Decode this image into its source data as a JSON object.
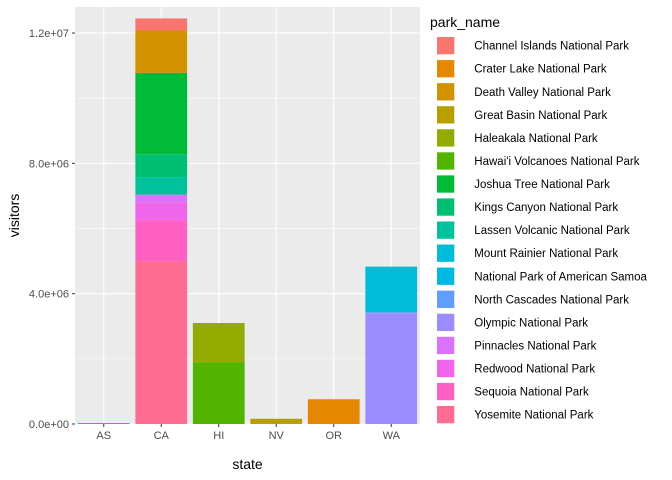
{
  "chart_data": {
    "type": "bar",
    "stacked": true,
    "xlabel": "state",
    "ylabel": "visitors",
    "ylim": [
      0,
      12800000
    ],
    "y_ticks": [
      0,
      4000000,
      8000000,
      12000000
    ],
    "y_tick_labels": [
      "0.0e+00",
      "4.0e+06",
      "8.0e+06",
      "1.2e+07"
    ],
    "categories": [
      "AS",
      "CA",
      "HI",
      "NV",
      "OR",
      "WA"
    ],
    "legend_title": "park_name",
    "legend_position": "right",
    "grid": true,
    "series": [
      {
        "name": "Channel Islands National Park",
        "color": "#F8766D",
        "values": [
          0,
          370000,
          0,
          0,
          0,
          0
        ]
      },
      {
        "name": "Crater Lake National Park",
        "color": "#E58700",
        "values": [
          0,
          0,
          0,
          0,
          760000,
          0
        ]
      },
      {
        "name": "Death Valley National Park",
        "color": "#D39200",
        "values": [
          0,
          1300000,
          0,
          0,
          0,
          0
        ]
      },
      {
        "name": "Great Basin National Park",
        "color": "#B79F00",
        "values": [
          0,
          0,
          0,
          160000,
          0,
          0
        ]
      },
      {
        "name": "Haleakala National Park",
        "color": "#93AA00",
        "values": [
          0,
          0,
          1200000,
          0,
          0,
          0
        ]
      },
      {
        "name": "Hawai'i Volcanoes National Park",
        "color": "#53B400",
        "values": [
          0,
          0,
          1900000,
          0,
          0,
          0
        ]
      },
      {
        "name": "Joshua Tree National Park",
        "color": "#00BA38",
        "values": [
          0,
          2500000,
          0,
          0,
          0,
          0
        ]
      },
      {
        "name": "Kings Canyon National Park",
        "color": "#00BF74",
        "values": [
          0,
          700000,
          0,
          0,
          0,
          0
        ]
      },
      {
        "name": "Lassen Volcanic National Park",
        "color": "#00C19C",
        "values": [
          0,
          540000,
          0,
          0,
          0,
          0
        ]
      },
      {
        "name": "Mount Rainier National Park",
        "color": "#00BCD8",
        "values": [
          0,
          0,
          0,
          0,
          0,
          1400000
        ]
      },
      {
        "name": "National Park of American Samoa",
        "color": "#00B9E3",
        "values": [
          30000,
          0,
          0,
          0,
          0,
          0
        ]
      },
      {
        "name": "North Cascades National Park",
        "color": "#619CFF",
        "values": [
          0,
          0,
          0,
          0,
          0,
          30000
        ]
      },
      {
        "name": "Olympic National Park",
        "color": "#9C8DFF",
        "values": [
          0,
          0,
          0,
          0,
          0,
          3400000
        ]
      },
      {
        "name": "Pinnacles National Park",
        "color": "#DB72FB",
        "values": [
          0,
          230000,
          0,
          0,
          0,
          0
        ]
      },
      {
        "name": "Redwood National Park",
        "color": "#F066EA",
        "values": [
          0,
          560000,
          0,
          0,
          0,
          0
        ]
      },
      {
        "name": "Sequoia National Park",
        "color": "#FF61C3",
        "values": [
          0,
          1250000,
          0,
          0,
          0,
          0
        ]
      },
      {
        "name": "Yosemite National Park",
        "color": "#FF6C91",
        "values": [
          0,
          5000000,
          0,
          0,
          0,
          0
        ]
      }
    ]
  }
}
